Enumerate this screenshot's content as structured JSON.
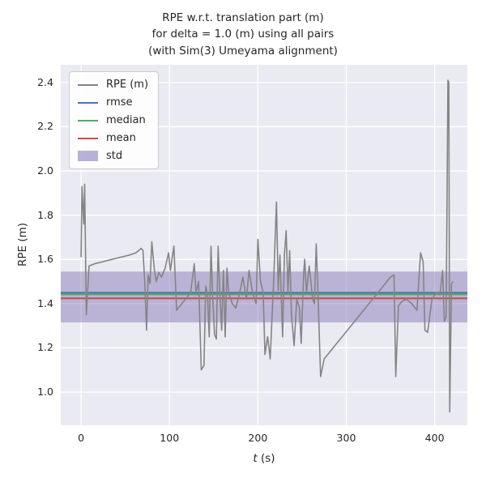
{
  "chart_data": {
    "type": "line",
    "title": "RPE w.r.t. translation part (m)\nfor delta = 1.0 (m) using all pairs\n(with Sim(3) Umeyama alignment)",
    "xlabel_var": "t",
    "xlabel_unit": " (s)",
    "ylabel": "RPE (m)",
    "xlim": [
      -23,
      437
    ],
    "ylim": [
      0.85,
      2.48
    ],
    "x_ticks": [
      0,
      100,
      200,
      300,
      400
    ],
    "y_ticks": [
      1.0,
      1.2,
      1.4,
      1.6,
      1.8,
      2.0,
      2.2,
      2.4
    ],
    "grid": true,
    "legend": {
      "position": "upper-left",
      "entries": [
        {
          "label": "RPE (m)",
          "color_key": "rpe",
          "type": "line"
        },
        {
          "label": "rmse",
          "color_key": "rmse",
          "type": "line"
        },
        {
          "label": "median",
          "color_key": "median",
          "type": "line"
        },
        {
          "label": "mean",
          "color_key": "mean",
          "type": "line"
        },
        {
          "label": "std",
          "color_key": "std",
          "type": "patch"
        }
      ]
    },
    "stats": {
      "rmse": 1.449,
      "median": 1.442,
      "mean": 1.424,
      "std_band": [
        1.315,
        1.545
      ]
    },
    "colors": {
      "rpe": "#848484",
      "rmse": "#4c72b0",
      "median": "#55a868",
      "mean": "#c44e52",
      "std": "#8172b2",
      "plot_bg": "#eaeaf2",
      "grid": "#ffffff"
    },
    "series": [
      {
        "name": "RPE (m)",
        "points": [
          [
            0,
            1.61
          ],
          [
            1,
            1.93
          ],
          [
            3,
            1.76
          ],
          [
            4,
            1.94
          ],
          [
            6,
            1.35
          ],
          [
            9,
            1.57
          ],
          [
            15,
            1.58
          ],
          [
            25,
            1.59
          ],
          [
            35,
            1.6
          ],
          [
            45,
            1.61
          ],
          [
            55,
            1.62
          ],
          [
            62,
            1.63
          ],
          [
            68,
            1.65
          ],
          [
            70,
            1.64
          ],
          [
            72,
            1.5
          ],
          [
            74,
            1.28
          ],
          [
            76,
            1.53
          ],
          [
            78,
            1.49
          ],
          [
            80,
            1.68
          ],
          [
            83,
            1.55
          ],
          [
            85,
            1.5
          ],
          [
            88,
            1.54
          ],
          [
            91,
            1.52
          ],
          [
            95,
            1.56
          ],
          [
            99,
            1.63
          ],
          [
            101,
            1.55
          ],
          [
            105,
            1.66
          ],
          [
            108,
            1.37
          ],
          [
            112,
            1.39
          ],
          [
            118,
            1.42
          ],
          [
            124,
            1.45
          ],
          [
            128,
            1.58
          ],
          [
            130,
            1.45
          ],
          [
            133,
            1.5
          ],
          [
            136,
            1.1
          ],
          [
            139,
            1.12
          ],
          [
            141,
            1.48
          ],
          [
            143,
            1.44
          ],
          [
            145,
            1.25
          ],
          [
            147,
            1.66
          ],
          [
            149,
            1.42
          ],
          [
            151,
            1.26
          ],
          [
            153,
            1.24
          ],
          [
            155,
            1.66
          ],
          [
            157,
            1.45
          ],
          [
            159,
            1.28
          ],
          [
            161,
            1.55
          ],
          [
            163,
            1.25
          ],
          [
            165,
            1.56
          ],
          [
            167,
            1.45
          ],
          [
            171,
            1.4
          ],
          [
            175,
            1.38
          ],
          [
            179,
            1.44
          ],
          [
            183,
            1.52
          ],
          [
            187,
            1.42
          ],
          [
            190,
            1.55
          ],
          [
            194,
            1.45
          ],
          [
            198,
            1.4
          ],
          [
            200,
            1.69
          ],
          [
            203,
            1.5
          ],
          [
            206,
            1.45
          ],
          [
            208,
            1.17
          ],
          [
            211,
            1.25
          ],
          [
            214,
            1.15
          ],
          [
            218,
            1.52
          ],
          [
            221,
            1.86
          ],
          [
            223,
            1.46
          ],
          [
            225,
            1.62
          ],
          [
            228,
            1.25
          ],
          [
            230,
            1.62
          ],
          [
            232,
            1.73
          ],
          [
            234,
            1.45
          ],
          [
            236,
            1.64
          ],
          [
            238,
            1.35
          ],
          [
            241,
            1.21
          ],
          [
            244,
            1.42
          ],
          [
            247,
            1.38
          ],
          [
            249,
            1.22
          ],
          [
            252,
            1.55
          ],
          [
            253,
            1.6
          ],
          [
            255,
            1.45
          ],
          [
            258,
            1.57
          ],
          [
            260,
            1.5
          ],
          [
            262,
            1.42
          ],
          [
            264,
            1.4
          ],
          [
            266,
            1.67
          ],
          [
            268,
            1.44
          ],
          [
            271,
            1.07
          ],
          [
            275,
            1.15
          ],
          [
            350,
            1.52
          ],
          [
            354,
            1.53
          ],
          [
            356,
            1.07
          ],
          [
            359,
            1.39
          ],
          [
            363,
            1.41
          ],
          [
            368,
            1.42
          ],
          [
            374,
            1.4
          ],
          [
            380,
            1.37
          ],
          [
            384,
            1.63
          ],
          [
            387,
            1.59
          ],
          [
            389,
            1.28
          ],
          [
            392,
            1.27
          ],
          [
            397,
            1.42
          ],
          [
            402,
            1.45
          ],
          [
            406,
            1.44
          ],
          [
            409,
            1.55
          ],
          [
            411,
            1.32
          ],
          [
            413,
            1.34
          ],
          [
            415,
            2.41
          ],
          [
            416,
            2.4
          ],
          [
            417,
            0.91
          ],
          [
            419,
            1.49
          ],
          [
            421,
            1.5
          ]
        ]
      }
    ]
  }
}
